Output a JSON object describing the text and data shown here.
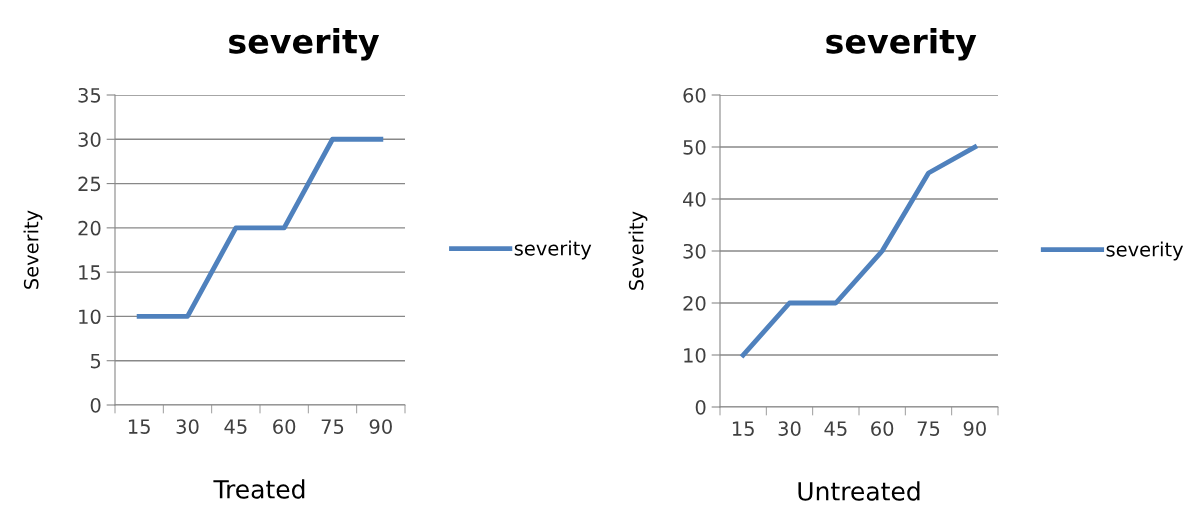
{
  "chart_data": [
    {
      "type": "line",
      "title": "severity",
      "xlabel": "Treated",
      "ylabel": "Severity",
      "categories": [
        "15",
        "30",
        "45",
        "60",
        "75",
        "90"
      ],
      "series": [
        {
          "name": "severity",
          "color": "#4f81bd",
          "values": [
            10,
            10,
            20,
            20,
            30,
            30
          ]
        }
      ],
      "ylim": [
        0,
        35
      ],
      "yticks": [
        0,
        5,
        10,
        15,
        20,
        25,
        30,
        35
      ],
      "grid": "y",
      "legend": "right",
      "marker": "none",
      "line_style": "solid"
    },
    {
      "type": "line",
      "title": "severity",
      "xlabel": "Untreated",
      "ylabel": "Severity",
      "categories": [
        "15",
        "30",
        "45",
        "60",
        "75",
        "90"
      ],
      "series": [
        {
          "name": "severity",
          "color": "#4f81bd",
          "values": [
            10,
            20,
            20,
            30,
            45,
            50
          ]
        }
      ],
      "ylim": [
        0,
        60
      ],
      "yticks": [
        0,
        10,
        20,
        30,
        40,
        50,
        60
      ],
      "grid": "y",
      "legend": "right",
      "marker": "none",
      "line_style": "solid"
    }
  ]
}
